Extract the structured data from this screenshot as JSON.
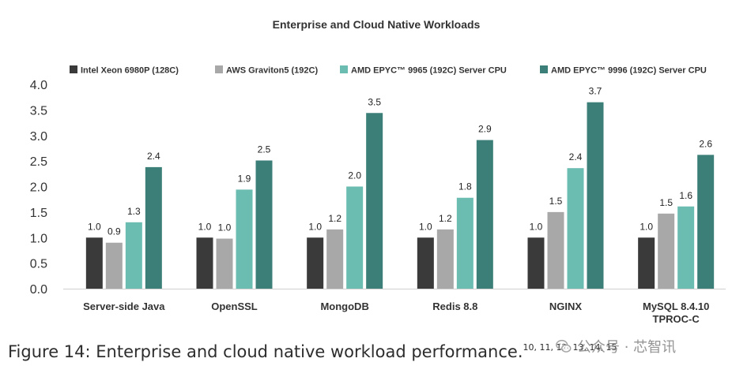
{
  "chart_data": {
    "type": "bar",
    "title": "Enterprise and Cloud Native Workloads",
    "categories": [
      "Server-side Java",
      "OpenSSL",
      "MongoDB",
      "Redis 8.8",
      "NGINX",
      "MySQL 8.4.10 TPROC-C"
    ],
    "category_lines": [
      [
        "Server-side Java"
      ],
      [
        "OpenSSL"
      ],
      [
        "MongoDB"
      ],
      [
        "Redis 8.8"
      ],
      [
        "NGINX"
      ],
      [
        "MySQL 8.4.10",
        "TPROC-C"
      ]
    ],
    "series": [
      {
        "name": "Intel Xeon 6980P (128C)",
        "color": "#3a3a3a",
        "values": [
          1.0,
          1.0,
          1.0,
          1.0,
          1.0,
          1.0
        ]
      },
      {
        "name": "AWS Graviton5 (192C)",
        "color": "#a8a8a8",
        "values": [
          0.9,
          1.0,
          1.2,
          1.2,
          1.5,
          1.5
        ]
      },
      {
        "name": "AMD EPYC™ 9965 (192C) Server CPU",
        "color": "#6bbcb1",
        "values": [
          1.3,
          1.9,
          2.0,
          1.8,
          2.4,
          1.6
        ]
      },
      {
        "name": "AMD EPYC™ 9996 (192C) Server CPU",
        "color": "#3c7f78",
        "values": [
          2.4,
          2.5,
          3.5,
          2.9,
          3.7,
          2.6
        ]
      }
    ],
    "bar_values": [
      [
        1.0,
        1.0,
        1.0,
        1.0,
        1.0,
        1.0
      ],
      [
        0.9,
        0.98,
        1.16,
        1.16,
        1.5,
        1.47
      ],
      [
        1.3,
        1.94,
        2.0,
        1.78,
        2.36,
        1.61
      ],
      [
        2.38,
        2.51,
        3.44,
        2.91,
        3.65,
        2.62
      ]
    ],
    "data_labels": [
      [
        "1.0",
        "1.0",
        "1.0",
        "1.0",
        "1.0",
        "1.0"
      ],
      [
        "0.9",
        "1.0",
        "1.2",
        "1.2",
        "1.5",
        "1.5"
      ],
      [
        "1.3",
        "1.9",
        "2.0",
        "1.8",
        "2.4",
        "1.6"
      ],
      [
        "2.4",
        "2.5",
        "3.5",
        "2.9",
        "3.7",
        "2.6"
      ]
    ],
    "yticks": [
      "0.0",
      "0.5",
      "1.0",
      "1.5",
      "2.0",
      "2.5",
      "3.0",
      "3.5",
      "4.0"
    ],
    "ylim": [
      0,
      4.0
    ],
    "xlabel": "",
    "ylabel": "",
    "grid": false,
    "legend_position": "top"
  },
  "caption": {
    "text": "Figure 14: Enterprise and cloud native workload performance.",
    "refs": "10, 11, 12, 13, 14, 15"
  },
  "watermark": {
    "text": "公众号 · 芯智讯",
    "icon": "wechat-icon"
  }
}
